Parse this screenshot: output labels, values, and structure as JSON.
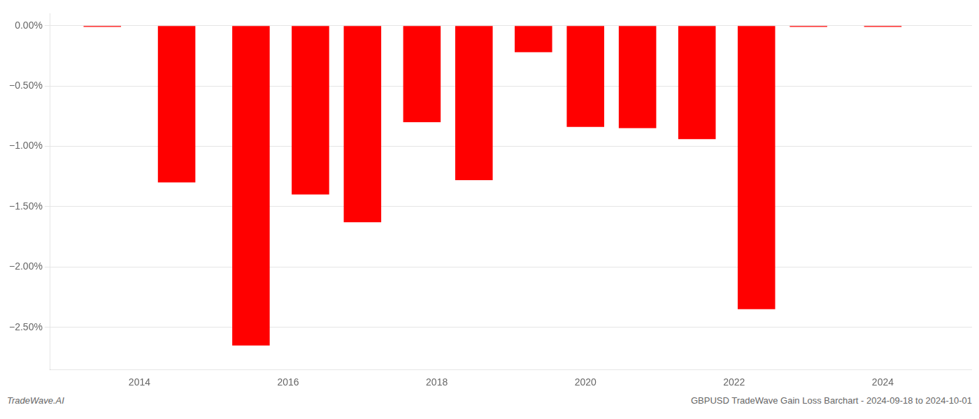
{
  "chart_data": {
    "type": "bar",
    "x": [
      2013.5,
      2014.5,
      2015.5,
      2016.3,
      2017.0,
      2017.8,
      2018.5,
      2019.3,
      2020.0,
      2020.7,
      2021.5,
      2022.3,
      2023.0,
      2024.0
    ],
    "values": [
      -0.01,
      -1.3,
      -2.65,
      -1.4,
      -1.63,
      -0.8,
      -1.28,
      -0.22,
      -0.84,
      -0.85,
      -0.94,
      -2.35,
      -0.01,
      -0.01
    ],
    "color": "#ff0000",
    "xlim": [
      2012.8,
      2025.2
    ],
    "xticks": [
      2014,
      2016,
      2018,
      2020,
      2022,
      2024
    ],
    "ylim": [
      -2.85,
      0.1
    ],
    "yticks": [
      {
        "value": 0.0,
        "label": "0.00%"
      },
      {
        "value": -0.5,
        "label": "−0.50%"
      },
      {
        "value": -1.0,
        "label": "−1.00%"
      },
      {
        "value": -1.5,
        "label": "−1.50%"
      },
      {
        "value": -2.0,
        "label": "−2.00%"
      },
      {
        "value": -2.5,
        "label": "−2.50%"
      }
    ],
    "grid": true,
    "annotations": [
      "TradeWave.AI",
      "GBPUSD TradeWave Gain Loss Barchart - 2024-09-18 to 2024-10-01"
    ]
  }
}
